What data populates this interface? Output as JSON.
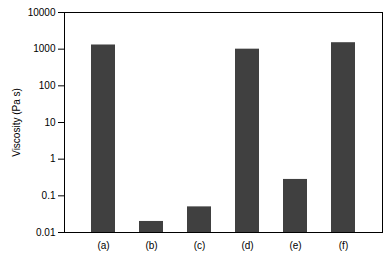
{
  "chart_data": {
    "type": "bar",
    "y_label": "Viscosity (Pa s)",
    "categories": [
      "(a)",
      "(b)",
      "(c)",
      "(d)",
      "(e)",
      "(f)"
    ],
    "values": [
      1300,
      0.02,
      0.05,
      1000,
      0.28,
      1500
    ],
    "color": "#404040",
    "log": "y",
    "ylim": [
      0.01,
      10000
    ],
    "yticks": [
      0.01,
      0.1,
      1,
      10,
      100,
      1000,
      10000
    ],
    "grid": false
  }
}
